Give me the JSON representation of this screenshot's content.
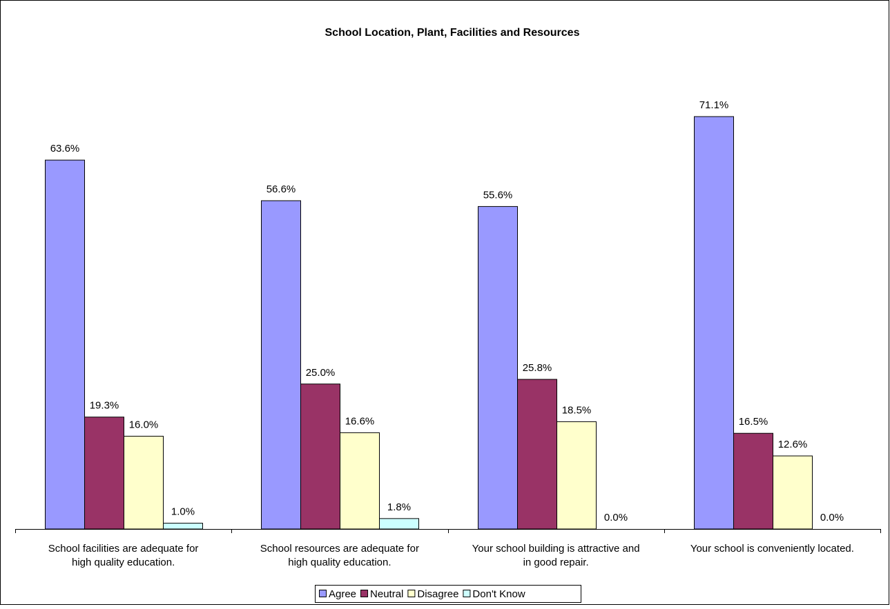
{
  "chart_data": {
    "type": "bar",
    "title": "School Location, Plant, Facilities and Resources",
    "xlabel": "",
    "ylabel": "",
    "ylim": [
      0,
      80
    ],
    "grid": false,
    "legend_position": "bottom",
    "categories": [
      [
        "School facilities are adequate for",
        "high quality education."
      ],
      [
        "School resources are adequate for",
        "high quality education."
      ],
      [
        "Your school building is attractive and",
        "in good repair."
      ],
      [
        "Your school is conveniently located."
      ]
    ],
    "series": [
      {
        "name": "Agree",
        "values": [
          63.6,
          56.6,
          55.6,
          71.1
        ],
        "labels": [
          "63.6%",
          "56.6%",
          "55.6%",
          "71.1%"
        ],
        "color": "#9999FF"
      },
      {
        "name": "Neutral",
        "values": [
          19.3,
          25.0,
          25.8,
          16.5
        ],
        "labels": [
          "19.3%",
          "25.0%",
          "25.8%",
          "16.5%"
        ],
        "color": "#993366"
      },
      {
        "name": "Disagree",
        "values": [
          16.0,
          16.6,
          18.5,
          12.6
        ],
        "labels": [
          "16.0%",
          "16.6%",
          "18.5%",
          "12.6%"
        ],
        "color": "#FFFFCC"
      },
      {
        "name": "Don't Know",
        "values": [
          1.0,
          1.8,
          0.0,
          0.0
        ],
        "labels": [
          "1.0%",
          "1.8%",
          "0.0%",
          "0.0%"
        ],
        "color": "#CCFFFF"
      }
    ]
  }
}
